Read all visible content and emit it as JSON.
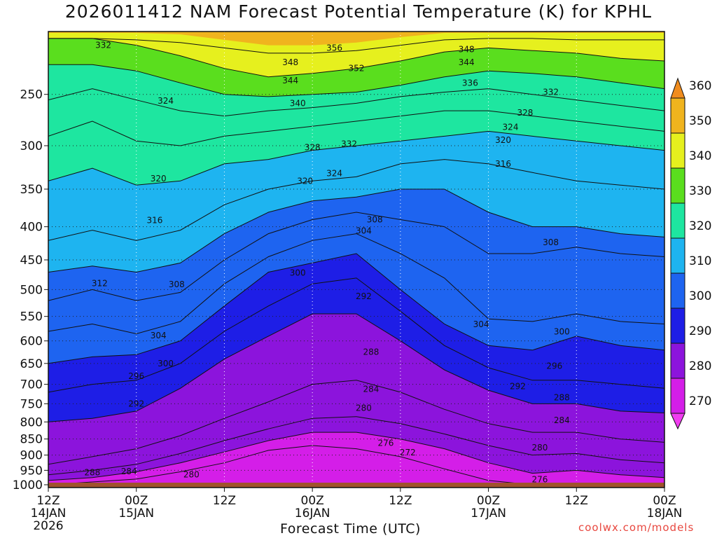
{
  "chart_data": {
    "type": "contour",
    "title": "2026011412 NAM Forecast Potential Temperature (K) for KPHL",
    "xlabel": "Forecast Time (UTC)",
    "ylabel": "",
    "credit": "coolwx.com/models",
    "y_scale": "log",
    "y_inverted": true,
    "ylim": [
      1010,
      200
    ],
    "y_ticks": [
      250,
      300,
      350,
      400,
      450,
      500,
      550,
      600,
      650,
      700,
      750,
      800,
      850,
      900,
      950,
      1000
    ],
    "x_range_hours": [
      0,
      84
    ],
    "x_ticks": [
      {
        "hour": 0,
        "label1": "12Z",
        "label2": "14JAN",
        "label3": "2026"
      },
      {
        "hour": 12,
        "label1": "00Z",
        "label2": "15JAN",
        "label3": ""
      },
      {
        "hour": 24,
        "label1": "12Z",
        "label2": "",
        "label3": ""
      },
      {
        "hour": 36,
        "label1": "00Z",
        "label2": "16JAN",
        "label3": ""
      },
      {
        "hour": 48,
        "label1": "12Z",
        "label2": "",
        "label3": ""
      },
      {
        "hour": 60,
        "label1": "00Z",
        "label2": "17JAN",
        "label3": ""
      },
      {
        "hour": 72,
        "label1": "12Z",
        "label2": "",
        "label3": ""
      },
      {
        "hour": 84,
        "label1": "00Z",
        "label2": "18JAN",
        "label3": ""
      }
    ],
    "contour_interval_K": 2,
    "color_levels": [
      {
        "min": 260,
        "max": 270,
        "color": "#f03cf0"
      },
      {
        "min": 270,
        "max": 280,
        "color": "#d41ee8"
      },
      {
        "min": 280,
        "max": 290,
        "color": "#8c14dc"
      },
      {
        "min": 290,
        "max": 300,
        "color": "#1e1ee6"
      },
      {
        "min": 300,
        "max": 310,
        "color": "#1e64f0"
      },
      {
        "min": 310,
        "max": 320,
        "color": "#1eb4f0"
      },
      {
        "min": 320,
        "max": 330,
        "color": "#1ee6a0"
      },
      {
        "min": 330,
        "max": 340,
        "color": "#5ade1e"
      },
      {
        "min": 340,
        "max": 350,
        "color": "#e6f01e"
      },
      {
        "min": 350,
        "max": 360,
        "color": "#f0b41e"
      },
      {
        "min": 360,
        "max": 370,
        "color": "#f08c1e"
      }
    ],
    "colorbar_labels": [
      "270",
      "280",
      "290",
      "300",
      "310",
      "320",
      "330",
      "340",
      "350",
      "360"
    ],
    "ground_color": "#a0522d",
    "isentropes": [
      {
        "theta": 276,
        "p": [
          1000,
          990,
          980,
          955,
          925,
          885,
          870,
          880,
          905,
          945,
          985,
          1000
        ]
      },
      {
        "theta": 280,
        "p": [
          985,
          975,
          955,
          925,
          890,
          855,
          830,
          830,
          850,
          880,
          925,
          960,
          950,
          965,
          975
        ]
      },
      {
        "theta": 284,
        "p": [
          965,
          950,
          930,
          895,
          855,
          820,
          790,
          785,
          805,
          835,
          870,
          900,
          895,
          915,
          925
        ]
      },
      {
        "theta": 288,
        "p": [
          930,
          905,
          880,
          840,
          790,
          745,
          700,
          690,
          720,
          765,
          805,
          830,
          830,
          850,
          860
        ]
      },
      {
        "theta": 292,
        "p": [
          800,
          790,
          770,
          710,
          640,
          590,
          545,
          545,
          600,
          665,
          715,
          750,
          750,
          770,
          775
        ]
      },
      {
        "theta": 296,
        "p": [
          720,
          700,
          690,
          650,
          580,
          530,
          490,
          480,
          540,
          610,
          660,
          690,
          690,
          700,
          710
        ]
      },
      {
        "theta": 300,
        "p": [
          650,
          635,
          630,
          600,
          530,
          470,
          455,
          440,
          500,
          565,
          610,
          620,
          590,
          610,
          620
        ]
      },
      {
        "theta": 304,
        "p": [
          580,
          565,
          585,
          560,
          490,
          445,
          420,
          410,
          440,
          480,
          555,
          560,
          545,
          560,
          565
        ]
      },
      {
        "theta": 308,
        "p": [
          520,
          500,
          520,
          505,
          450,
          410,
          390,
          380,
          390,
          400,
          440,
          440,
          430,
          440,
          445
        ]
      },
      {
        "theta": 312,
        "p": [
          470,
          460,
          470,
          455,
          410,
          380,
          365,
          360,
          350,
          350,
          380,
          400,
          400,
          410,
          415
        ]
      },
      {
        "theta": 316,
        "p": [
          420,
          405,
          420,
          405,
          370,
          350,
          340,
          335,
          320,
          315,
          320,
          330,
          340,
          345,
          350
        ]
      },
      {
        "theta": 320,
        "p": [
          340,
          325,
          345,
          340,
          320,
          315,
          305,
          300,
          295,
          290,
          285,
          290,
          295,
          300,
          305
        ]
      },
      {
        "theta": 324,
        "p": [
          290,
          275,
          295,
          300,
          290,
          285,
          280,
          275,
          270,
          265,
          265,
          270,
          275,
          280,
          285
        ]
      },
      {
        "theta": 328,
        "p": [
          255,
          245,
          255,
          265,
          270,
          265,
          262,
          258,
          252,
          248,
          245,
          250,
          255,
          260,
          265
        ]
      },
      {
        "theta": 332,
        "p": [
          225,
          225,
          230,
          240,
          250,
          252,
          250,
          248,
          242,
          235,
          230,
          232,
          235,
          240,
          245
        ]
      },
      {
        "theta": 340,
        "p": [
          205,
          205,
          210,
          218,
          228,
          235,
          232,
          228,
          222,
          215,
          212,
          214,
          216,
          220,
          222
        ]
      },
      {
        "theta": 348,
        "p": [
          205,
          205,
          206,
          208,
          212,
          216,
          216,
          214,
          210,
          206,
          205,
          205,
          206,
          206,
          206
        ]
      }
    ],
    "isentrope_hours": [
      0,
      6,
      12,
      18,
      24,
      30,
      36,
      42,
      48,
      54,
      60,
      66,
      72,
      78,
      84
    ],
    "contour_labels": [
      {
        "text": "332",
        "hour": 7.5,
        "p": 210
      },
      {
        "text": "356",
        "hour": 39,
        "p": 212
      },
      {
        "text": "348",
        "hour": 57,
        "p": 213
      },
      {
        "text": "348",
        "hour": 33,
        "p": 223
      },
      {
        "text": "344",
        "hour": 57,
        "p": 223
      },
      {
        "text": "352",
        "hour": 42,
        "p": 228
      },
      {
        "text": "344",
        "hour": 33,
        "p": 238
      },
      {
        "text": "336",
        "hour": 57.5,
        "p": 240
      },
      {
        "text": "332",
        "hour": 68.5,
        "p": 248
      },
      {
        "text": "324",
        "hour": 16,
        "p": 256
      },
      {
        "text": "340",
        "hour": 34,
        "p": 258
      },
      {
        "text": "328",
        "hour": 65,
        "p": 267
      },
      {
        "text": "324",
        "hour": 63,
        "p": 281
      },
      {
        "text": "320",
        "hour": 62,
        "p": 294
      },
      {
        "text": "332",
        "hour": 41,
        "p": 298
      },
      {
        "text": "328",
        "hour": 36,
        "p": 302
      },
      {
        "text": "316",
        "hour": 62,
        "p": 320
      },
      {
        "text": "324",
        "hour": 39,
        "p": 331
      },
      {
        "text": "320",
        "hour": 15,
        "p": 337
      },
      {
        "text": "320",
        "hour": 35,
        "p": 340
      },
      {
        "text": "316",
        "hour": 14.5,
        "p": 391
      },
      {
        "text": "308",
        "hour": 44.5,
        "p": 390
      },
      {
        "text": "304",
        "hour": 43,
        "p": 406
      },
      {
        "text": "308",
        "hour": 68.5,
        "p": 423
      },
      {
        "text": "300",
        "hour": 34,
        "p": 471
      },
      {
        "text": "312",
        "hour": 7,
        "p": 489
      },
      {
        "text": "308",
        "hour": 17.5,
        "p": 491
      },
      {
        "text": "292",
        "hour": 43,
        "p": 512
      },
      {
        "text": "304",
        "hour": 59,
        "p": 566
      },
      {
        "text": "304",
        "hour": 15,
        "p": 589
      },
      {
        "text": "300",
        "hour": 70,
        "p": 581
      },
      {
        "text": "288",
        "hour": 44,
        "p": 624
      },
      {
        "text": "300",
        "hour": 16,
        "p": 650
      },
      {
        "text": "296",
        "hour": 69,
        "p": 656
      },
      {
        "text": "296",
        "hour": 12,
        "p": 680
      },
      {
        "text": "292",
        "hour": 64,
        "p": 705
      },
      {
        "text": "284",
        "hour": 44,
        "p": 712
      },
      {
        "text": "288",
        "hour": 70,
        "p": 734
      },
      {
        "text": "292",
        "hour": 12,
        "p": 750
      },
      {
        "text": "280",
        "hour": 43,
        "p": 762
      },
      {
        "text": "284",
        "hour": 70,
        "p": 795
      },
      {
        "text": "276",
        "hour": 46,
        "p": 862
      },
      {
        "text": "272",
        "hour": 49,
        "p": 892
      },
      {
        "text": "280",
        "hour": 67,
        "p": 877
      },
      {
        "text": "288",
        "hour": 6,
        "p": 957
      },
      {
        "text": "284",
        "hour": 11,
        "p": 954
      },
      {
        "text": "280",
        "hour": 19.5,
        "p": 965
      },
      {
        "text": "276",
        "hour": 67,
        "p": 982
      }
    ]
  }
}
